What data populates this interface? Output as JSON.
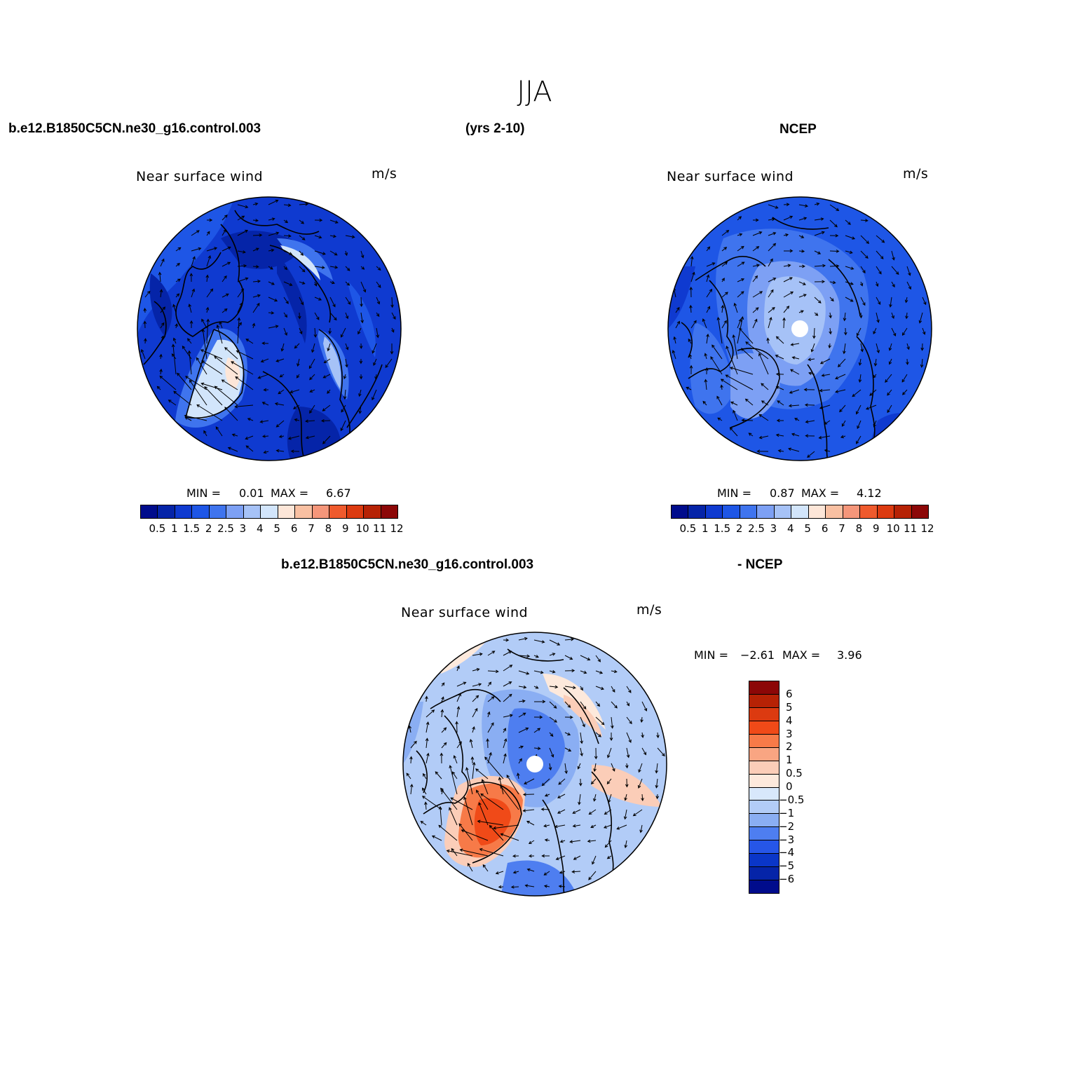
{
  "season_title": "JJA",
  "case_name": "b.e12.B1850C5CN.ne30_g16.control.003",
  "years": "(yrs 2-10)",
  "obs_name": "NCEP",
  "diff_case_name": "b.e12.B1850C5CN.ne30_g16.control.003",
  "diff_obs_name": "- NCEP",
  "panels": [
    {
      "variable": "Near surface wind",
      "units": "m/s",
      "min_label": "MIN =",
      "min_value": "0.01",
      "max_label": "MAX =",
      "max_value": "6.67"
    },
    {
      "variable": "Near surface wind",
      "units": "m/s",
      "min_label": "MIN =",
      "min_value": "0.87",
      "max_label": "MAX =",
      "max_value": "4.12"
    },
    {
      "variable": "Near surface wind",
      "units": "m/s",
      "min_label": "MIN =",
      "min_value": "−2.61",
      "max_label": "MAX =",
      "max_value": "3.96"
    }
  ],
  "colorbar_abs": {
    "labels": [
      "0.5",
      "1",
      "1.5",
      "2",
      "2.5",
      "3",
      "4",
      "5",
      "6",
      "7",
      "8",
      "9",
      "10",
      "11",
      "12"
    ],
    "colors": [
      "#000c8c",
      "#0524a8",
      "#0f3ad0",
      "#1e56e6",
      "#3f74ee",
      "#7da0f4",
      "#a6c2f7",
      "#d2e5fb",
      "#fde6d8",
      "#f9c0a2",
      "#f5967a",
      "#ef5a2d",
      "#dc3a10",
      "#b62205",
      "#8c0707"
    ]
  },
  "colorbar_diff": {
    "labels": [
      "6",
      "5",
      "4",
      "3",
      "2",
      "1",
      "0.5",
      "0",
      "−0.5",
      "−1",
      "−2",
      "−3",
      "−4",
      "−5",
      "−6"
    ],
    "colors": [
      "#8c0707",
      "#b62205",
      "#dc3a10",
      "#f04a18",
      "#f77a48",
      "#f9a582",
      "#fbcdb8",
      "#fde9dc",
      "#d8e8fb",
      "#b2ccf7",
      "#8aaef3",
      "#4e7ef0",
      "#2656e8",
      "#0a36c8",
      "#0524a8",
      "#000c8c"
    ]
  }
}
